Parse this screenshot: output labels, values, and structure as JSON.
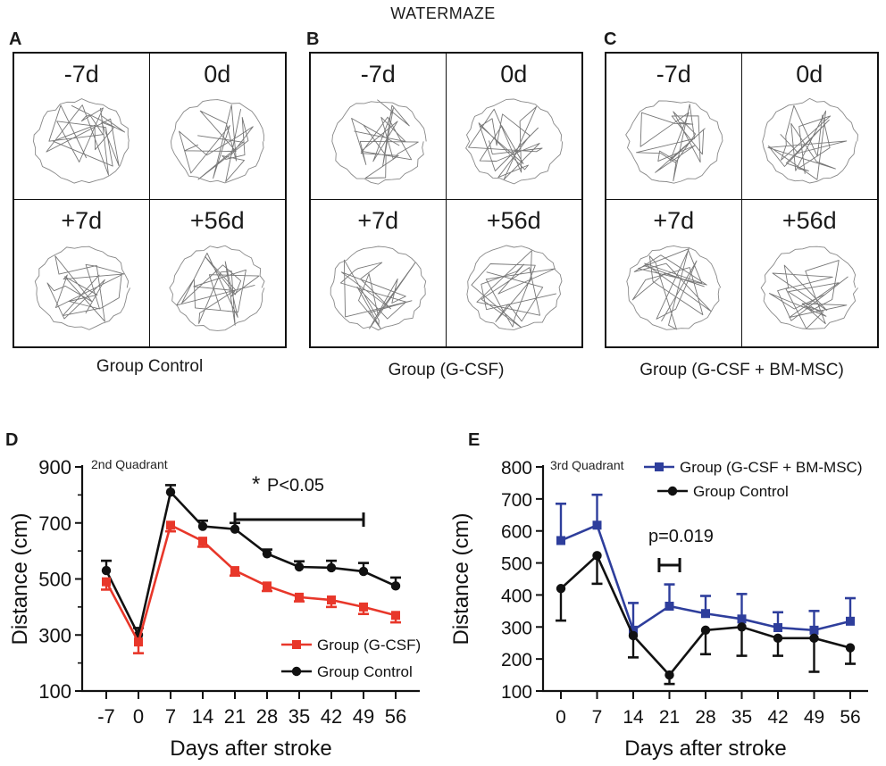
{
  "figure_title": "WATERMAZE",
  "maze_panels": [
    {
      "letter": "A",
      "caption": "Group Control",
      "cells": [
        "-7d",
        "0d",
        "+7d",
        "+56d"
      ]
    },
    {
      "letter": "B",
      "caption": "Group (G-CSF)",
      "cells": [
        "-7d",
        "0d",
        "+7d",
        "+56d"
      ]
    },
    {
      "letter": "C",
      "caption": "Group (G-CSF + BM-MSC)",
      "cells": [
        "-7d",
        "0d",
        "+7d",
        "+56d"
      ]
    }
  ],
  "colors": {
    "red": "#e8372a",
    "black": "#111111",
    "blue": "#2e3e9c"
  },
  "chart_data": [
    {
      "panel": "D",
      "type": "line",
      "title": "",
      "inset_label": "2nd Quadrant",
      "xlabel": "Days after stroke",
      "ylabel": "Distance (cm)",
      "x": [
        -7,
        0,
        7,
        14,
        21,
        28,
        35,
        42,
        49,
        56
      ],
      "x_ticks": [
        "-7",
        "0",
        "7",
        "14",
        "21",
        "28",
        "35",
        "42",
        "49",
        "56"
      ],
      "ylim": [
        100,
        900
      ],
      "y_ticks": [
        100,
        300,
        500,
        700,
        900
      ],
      "series": [
        {
          "name": "Group Control",
          "legend_text": "Group Control",
          "color": "#111111",
          "values": [
            530,
            300,
            810,
            688,
            678,
            590,
            543,
            540,
            527,
            475
          ],
          "errors": [
            35,
            25,
            25,
            20,
            22,
            15,
            20,
            25,
            30,
            30
          ]
        },
        {
          "name": "Group (G-CSF)",
          "legend_text": "Group (G-CSF)",
          "color": "#e8372a",
          "values": [
            490,
            275,
            692,
            635,
            530,
            475,
            435,
            425,
            400,
            370
          ],
          "errors": [
            28,
            40,
            22,
            20,
            18,
            18,
            15,
            25,
            25,
            25
          ]
        }
      ],
      "annotation": {
        "star": "*",
        "text": "P<0.05",
        "bar_from": 21,
        "bar_to": 49
      }
    },
    {
      "panel": "E",
      "type": "line",
      "title": "",
      "inset_label": "3rd Quadrant",
      "xlabel": "Days after stroke",
      "ylabel": "Distance (cm)",
      "x": [
        0,
        7,
        14,
        21,
        28,
        35,
        42,
        49,
        56
      ],
      "x_ticks": [
        "0",
        "7",
        "14",
        "21",
        "28",
        "35",
        "42",
        "49",
        "56"
      ],
      "ylim": [
        100,
        800
      ],
      "y_ticks": [
        100,
        200,
        300,
        400,
        500,
        600,
        700,
        800
      ],
      "series": [
        {
          "name": "Group (G-CSF + BM-MSC)",
          "legend_text": "Group (G-CSF + BM-MSC)",
          "color": "#2e3e9c",
          "values": [
            570,
            618,
            290,
            365,
            342,
            325,
            298,
            290,
            318
          ],
          "errors": [
            115,
            95,
            85,
            68,
            55,
            78,
            48,
            60,
            72
          ]
        },
        {
          "name": "Group Control",
          "legend_text": "Group Control",
          "color": "#111111",
          "values": [
            420,
            523,
            273,
            150,
            290,
            300,
            265,
            265,
            235
          ],
          "errors": [
            100,
            88,
            68,
            28,
            75,
            90,
            55,
            105,
            50
          ]
        }
      ],
      "annotation": {
        "text": "p=0.019",
        "bar_from": 19,
        "bar_to": 23
      }
    }
  ]
}
